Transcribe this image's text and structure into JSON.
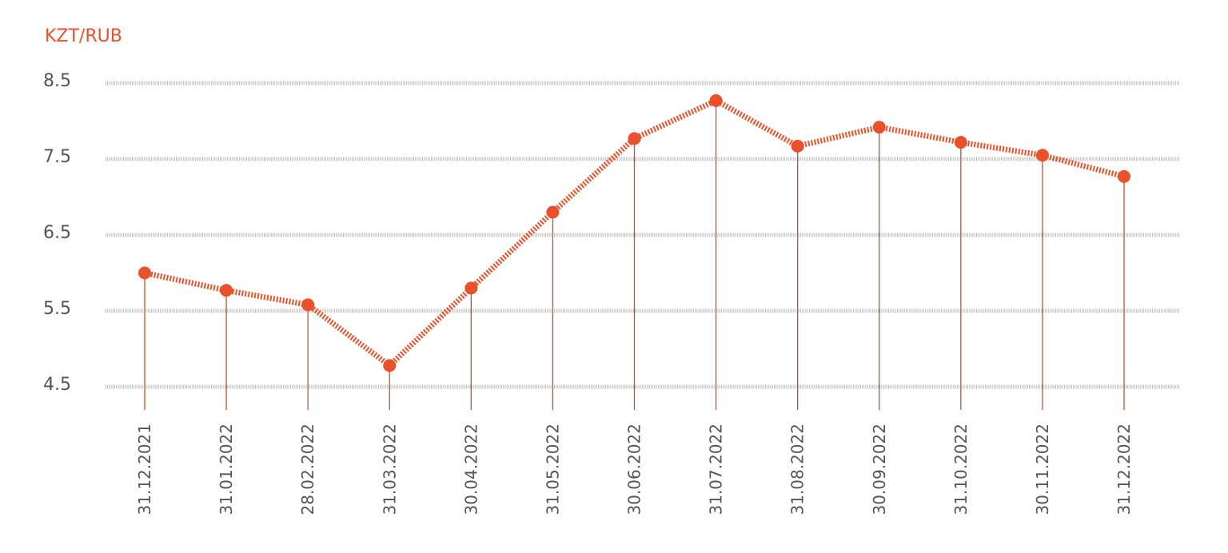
{
  "chart_data": {
    "type": "line",
    "title": "",
    "unit_label": "KZT/RUB",
    "xlabel": "",
    "ylabel": "",
    "categories": [
      "31.12.2021",
      "31.01.2022",
      "28.02.2022",
      "31.03.2022",
      "30.04.2022",
      "31.05.2022",
      "30.06.2022",
      "31.07.2022",
      "31.08.2022",
      "30.09.2022",
      "31.10.2022",
      "30.11.2022",
      "31.12.2022"
    ],
    "series": [
      {
        "values": [
          6.0,
          5.77,
          5.58,
          4.78,
          5.8,
          6.8,
          7.77,
          8.27,
          7.67,
          7.92,
          7.72,
          7.55,
          7.27
        ]
      }
    ],
    "yticks": [
      "8.5",
      "7.5",
      "6.5",
      "5.5",
      "4.5"
    ],
    "ytick_values": [
      8.5,
      7.5,
      6.5,
      5.5,
      4.5
    ],
    "ylim": [
      4.5,
      8.5
    ],
    "grid": true,
    "legend": "none",
    "colors": {
      "accent": "#e8512a",
      "drop_line": "#c0522e",
      "grid": "#bdbdbd",
      "text": "#555555"
    }
  }
}
